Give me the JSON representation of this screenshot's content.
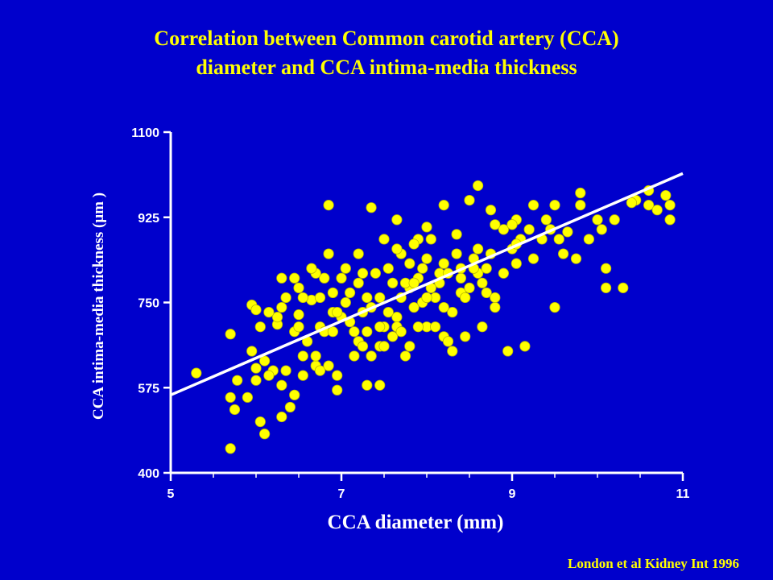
{
  "slide": {
    "background_color": "#0000cc",
    "title_line1": "Correlation between Common carotid artery (CCA)",
    "title_line2": "diameter and CCA intima-media thickness",
    "source": "London et al Kidney Int 1996"
  },
  "chart_data": {
    "type": "scatter",
    "title": "Correlation between Common carotid artery (CCA) diameter and CCA intima-media thickness",
    "xlabel": "CCA diameter (mm)",
    "ylabel": "CCA intima-media thickness (μm )",
    "xlim": [
      5,
      11
    ],
    "ylim": [
      400,
      1100
    ],
    "x_ticks": [
      5,
      7,
      9,
      11
    ],
    "y_ticks": [
      400,
      575,
      750,
      925,
      1100
    ],
    "grid": false,
    "colors": {
      "points": "#ffff00",
      "point_outline": "#b8b800",
      "fit_line": "#ffffff",
      "axes": "#ffffff"
    },
    "fit_line": {
      "x": [
        5,
        11
      ],
      "y": [
        560,
        1015
      ]
    },
    "points": [
      [
        5.3,
        605
      ],
      [
        5.7,
        450
      ],
      [
        5.7,
        555
      ],
      [
        5.7,
        685
      ],
      [
        5.75,
        530
      ],
      [
        5.78,
        590
      ],
      [
        5.9,
        555
      ],
      [
        5.95,
        745
      ],
      [
        6.0,
        735
      ],
      [
        6.0,
        615
      ],
      [
        6.0,
        590
      ],
      [
        6.05,
        505
      ],
      [
        6.1,
        630
      ],
      [
        6.1,
        480
      ],
      [
        6.2,
        610
      ],
      [
        6.3,
        515
      ],
      [
        6.3,
        580
      ],
      [
        6.25,
        705
      ],
      [
        6.4,
        535
      ],
      [
        6.45,
        560
      ],
      [
        6.45,
        690
      ],
      [
        6.5,
        725
      ],
      [
        6.5,
        780
      ],
      [
        6.55,
        640
      ],
      [
        6.6,
        670
      ],
      [
        6.7,
        620
      ],
      [
        6.75,
        700
      ],
      [
        6.8,
        690
      ],
      [
        6.9,
        730
      ],
      [
        7.0,
        720
      ],
      [
        7.1,
        710
      ],
      [
        7.2,
        670
      ],
      [
        7.3,
        690
      ],
      [
        7.35,
        640
      ],
      [
        7.45,
        580
      ],
      [
        7.45,
        660
      ],
      [
        7.5,
        700
      ],
      [
        7.6,
        680
      ],
      [
        7.65,
        720
      ],
      [
        7.7,
        760
      ],
      [
        7.8,
        660
      ],
      [
        7.85,
        740
      ],
      [
        7.9,
        800
      ],
      [
        7.95,
        750
      ],
      [
        8.0,
        700
      ],
      [
        8.1,
        760
      ],
      [
        8.15,
        790
      ],
      [
        8.2,
        680
      ],
      [
        8.3,
        730
      ],
      [
        8.4,
        770
      ],
      [
        8.5,
        780
      ],
      [
        8.6,
        810
      ],
      [
        8.7,
        770
      ],
      [
        8.75,
        850
      ],
      [
        8.8,
        740
      ],
      [
        8.9,
        810
      ],
      [
        9.0,
        860
      ],
      [
        9.05,
        830
      ],
      [
        8.6,
        860
      ],
      [
        8.4,
        820
      ],
      [
        8.2,
        830
      ],
      [
        8.0,
        840
      ],
      [
        7.9,
        880
      ],
      [
        7.8,
        780
      ],
      [
        7.7,
        850
      ],
      [
        7.55,
        820
      ],
      [
        7.4,
        810
      ],
      [
        7.3,
        760
      ],
      [
        7.2,
        790
      ],
      [
        7.1,
        770
      ],
      [
        7.0,
        800
      ],
      [
        6.9,
        770
      ],
      [
        6.8,
        800
      ],
      [
        6.7,
        810
      ],
      [
        6.65,
        755
      ],
      [
        6.55,
        760
      ],
      [
        6.45,
        800
      ],
      [
        6.35,
        760
      ],
      [
        6.3,
        740
      ],
      [
        6.25,
        720
      ],
      [
        6.5,
        700
      ],
      [
        6.7,
        640
      ],
      [
        6.75,
        760
      ],
      [
        6.9,
        690
      ],
      [
        6.95,
        730
      ],
      [
        7.05,
        750
      ],
      [
        7.15,
        690
      ],
      [
        7.25,
        660
      ],
      [
        7.35,
        740
      ],
      [
        7.45,
        760
      ],
      [
        7.55,
        730
      ],
      [
        7.65,
        700
      ],
      [
        7.75,
        790
      ],
      [
        7.85,
        790
      ],
      [
        7.95,
        820
      ],
      [
        8.05,
        780
      ],
      [
        8.15,
        810
      ],
      [
        8.25,
        810
      ],
      [
        8.35,
        850
      ],
      [
        8.45,
        760
      ],
      [
        8.55,
        820
      ],
      [
        8.65,
        790
      ],
      [
        8.8,
        760
      ],
      [
        8.9,
        900
      ],
      [
        9.05,
        920
      ],
      [
        9.1,
        880
      ],
      [
        9.2,
        900
      ],
      [
        9.25,
        840
      ],
      [
        9.35,
        880
      ],
      [
        9.45,
        900
      ],
      [
        9.55,
        880
      ],
      [
        9.6,
        850
      ],
      [
        9.75,
        840
      ],
      [
        9.8,
        950
      ],
      [
        9.9,
        880
      ],
      [
        10.05,
        900
      ],
      [
        10.1,
        820
      ],
      [
        10.2,
        920
      ],
      [
        10.3,
        780
      ],
      [
        10.45,
        960
      ],
      [
        10.6,
        950
      ],
      [
        10.7,
        940
      ],
      [
        10.8,
        970
      ],
      [
        10.85,
        950
      ],
      [
        10.85,
        920
      ],
      [
        10.0,
        920
      ],
      [
        9.8,
        975
      ],
      [
        9.5,
        950
      ],
      [
        9.4,
        920
      ],
      [
        9.25,
        950
      ],
      [
        9.0,
        910
      ],
      [
        8.75,
        940
      ],
      [
        8.6,
        990
      ],
      [
        8.5,
        960
      ],
      [
        8.2,
        950
      ],
      [
        8.0,
        905
      ],
      [
        7.85,
        870
      ],
      [
        7.65,
        860
      ],
      [
        7.5,
        880
      ],
      [
        7.35,
        945
      ],
      [
        7.2,
        850
      ],
      [
        7.05,
        820
      ],
      [
        6.85,
        950
      ],
      [
        6.95,
        570
      ],
      [
        7.3,
        580
      ],
      [
        7.75,
        640
      ],
      [
        8.3,
        650
      ],
      [
        8.95,
        650
      ],
      [
        9.15,
        660
      ],
      [
        9.5,
        740
      ],
      [
        10.1,
        780
      ],
      [
        10.6,
        980
      ],
      [
        10.4,
        955
      ],
      [
        9.65,
        895
      ],
      [
        9.05,
        870
      ],
      [
        8.8,
        910
      ],
      [
        8.35,
        890
      ],
      [
        8.05,
        880
      ],
      [
        7.65,
        920
      ],
      [
        7.25,
        810
      ],
      [
        6.85,
        850
      ],
      [
        6.65,
        820
      ],
      [
        6.3,
        800
      ],
      [
        6.15,
        730
      ],
      [
        6.05,
        700
      ],
      [
        5.95,
        650
      ],
      [
        6.15,
        600
      ],
      [
        6.35,
        610
      ],
      [
        6.55,
        600
      ],
      [
        6.75,
        610
      ],
      [
        6.85,
        620
      ],
      [
        6.95,
        600
      ],
      [
        7.15,
        640
      ],
      [
        7.35,
        640
      ],
      [
        7.5,
        660
      ],
      [
        7.7,
        690
      ],
      [
        7.9,
        700
      ],
      [
        8.1,
        700
      ],
      [
        8.25,
        670
      ],
      [
        8.45,
        680
      ],
      [
        8.65,
        700
      ],
      [
        7.25,
        730
      ],
      [
        7.45,
        700
      ],
      [
        7.6,
        790
      ],
      [
        7.8,
        830
      ],
      [
        8.0,
        760
      ],
      [
        8.2,
        740
      ],
      [
        8.4,
        800
      ],
      [
        8.55,
        840
      ],
      [
        8.7,
        820
      ]
    ]
  }
}
